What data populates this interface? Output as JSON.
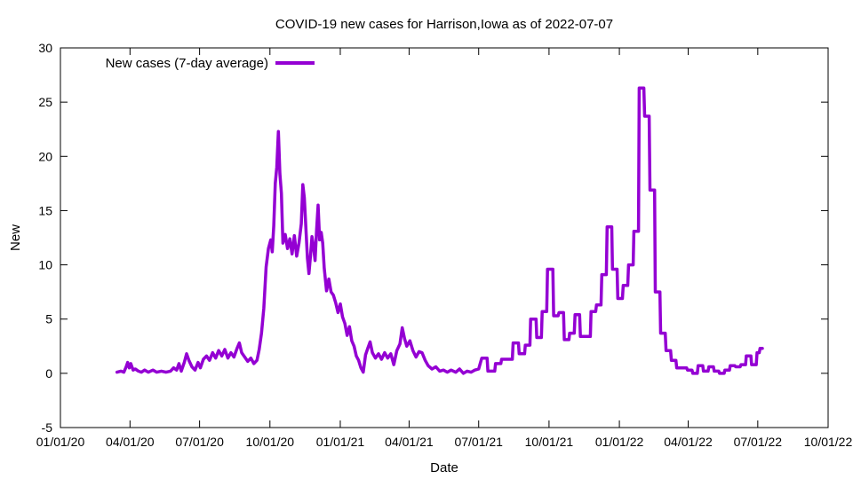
{
  "chart_data": {
    "type": "line",
    "title": "COVID-19 new cases for Harrison,Iowa as of 2022-07-07",
    "xlabel": "Date",
    "ylabel": "New",
    "ylim": [
      -5,
      30
    ],
    "yticks": [
      -5,
      0,
      5,
      10,
      15,
      20,
      25,
      30
    ],
    "xlim": [
      "2020-01-01",
      "2022-10-01"
    ],
    "xticks": [
      {
        "date": "2020-01-01",
        "label": "01/01/20"
      },
      {
        "date": "2020-04-01",
        "label": "04/01/20"
      },
      {
        "date": "2020-07-01",
        "label": "07/01/20"
      },
      {
        "date": "2020-10-01",
        "label": "10/01/20"
      },
      {
        "date": "2021-01-01",
        "label": "01/01/21"
      },
      {
        "date": "2021-04-01",
        "label": "04/01/21"
      },
      {
        "date": "2021-07-01",
        "label": "07/01/21"
      },
      {
        "date": "2021-10-01",
        "label": "10/01/21"
      },
      {
        "date": "2022-01-01",
        "label": "01/01/22"
      },
      {
        "date": "2022-04-01",
        "label": "04/01/22"
      },
      {
        "date": "2022-07-01",
        "label": "07/01/22"
      },
      {
        "date": "2022-10-01",
        "label": "10/01/22"
      }
    ],
    "grid": false,
    "legend_position": "top-left",
    "series": [
      {
        "name": "New cases (7-day average)",
        "color": "#9400d3",
        "points": [
          [
            "2020-03-15",
            0.1
          ],
          [
            "2020-03-20",
            0.2
          ],
          [
            "2020-03-24",
            0.1
          ],
          [
            "2020-03-27",
            0.6
          ],
          [
            "2020-03-29",
            1.0
          ],
          [
            "2020-03-31",
            0.5
          ],
          [
            "2020-04-02",
            0.9
          ],
          [
            "2020-04-05",
            0.3
          ],
          [
            "2020-04-08",
            0.4
          ],
          [
            "2020-04-12",
            0.2
          ],
          [
            "2020-04-16",
            0.1
          ],
          [
            "2020-04-20",
            0.3
          ],
          [
            "2020-04-25",
            0.1
          ],
          [
            "2020-05-01",
            0.3
          ],
          [
            "2020-05-06",
            0.1
          ],
          [
            "2020-05-12",
            0.2
          ],
          [
            "2020-05-18",
            0.1
          ],
          [
            "2020-05-24",
            0.2
          ],
          [
            "2020-05-28",
            0.5
          ],
          [
            "2020-06-01",
            0.3
          ],
          [
            "2020-06-04",
            0.9
          ],
          [
            "2020-06-07",
            0.2
          ],
          [
            "2020-06-11",
            1.0
          ],
          [
            "2020-06-14",
            1.8
          ],
          [
            "2020-06-17",
            1.2
          ],
          [
            "2020-06-21",
            0.6
          ],
          [
            "2020-06-25",
            0.3
          ],
          [
            "2020-06-29",
            1.0
          ],
          [
            "2020-07-02",
            0.5
          ],
          [
            "2020-07-06",
            1.3
          ],
          [
            "2020-07-10",
            1.6
          ],
          [
            "2020-07-14",
            1.2
          ],
          [
            "2020-07-18",
            1.9
          ],
          [
            "2020-07-22",
            1.4
          ],
          [
            "2020-07-26",
            2.1
          ],
          [
            "2020-07-30",
            1.6
          ],
          [
            "2020-08-03",
            2.2
          ],
          [
            "2020-08-07",
            1.4
          ],
          [
            "2020-08-11",
            1.9
          ],
          [
            "2020-08-15",
            1.5
          ],
          [
            "2020-08-19",
            2.3
          ],
          [
            "2020-08-22",
            2.8
          ],
          [
            "2020-08-25",
            1.9
          ],
          [
            "2020-08-29",
            1.5
          ],
          [
            "2020-09-02",
            1.1
          ],
          [
            "2020-09-06",
            1.4
          ],
          [
            "2020-09-10",
            0.9
          ],
          [
            "2020-09-14",
            1.2
          ],
          [
            "2020-09-17",
            2.2
          ],
          [
            "2020-09-20",
            3.7
          ],
          [
            "2020-09-23",
            6.0
          ],
          [
            "2020-09-26",
            9.8
          ],
          [
            "2020-09-29",
            11.5
          ],
          [
            "2020-10-02",
            12.3
          ],
          [
            "2020-10-04",
            11.2
          ],
          [
            "2020-10-06",
            13.6
          ],
          [
            "2020-10-08",
            17.5
          ],
          [
            "2020-10-10",
            19.0
          ],
          [
            "2020-10-12",
            22.3
          ],
          [
            "2020-10-14",
            18.4
          ],
          [
            "2020-10-16",
            16.6
          ],
          [
            "2020-10-18",
            12.0
          ],
          [
            "2020-10-21",
            12.8
          ],
          [
            "2020-10-24",
            11.5
          ],
          [
            "2020-10-27",
            12.4
          ],
          [
            "2020-10-30",
            11.0
          ],
          [
            "2020-11-02",
            12.7
          ],
          [
            "2020-11-05",
            10.8
          ],
          [
            "2020-11-08",
            12.0
          ],
          [
            "2020-11-11",
            13.8
          ],
          [
            "2020-11-13",
            17.4
          ],
          [
            "2020-11-15",
            16.2
          ],
          [
            "2020-11-17",
            13.5
          ],
          [
            "2020-11-19",
            10.6
          ],
          [
            "2020-11-21",
            9.2
          ],
          [
            "2020-11-23",
            10.8
          ],
          [
            "2020-11-25",
            12.6
          ],
          [
            "2020-11-27",
            11.7
          ],
          [
            "2020-11-29",
            10.4
          ],
          [
            "2020-12-01",
            13.2
          ],
          [
            "2020-12-03",
            15.5
          ],
          [
            "2020-12-05",
            12.3
          ],
          [
            "2020-12-07",
            13.0
          ],
          [
            "2020-12-09",
            12.0
          ],
          [
            "2020-12-11",
            9.7
          ],
          [
            "2020-12-14",
            7.6
          ],
          [
            "2020-12-17",
            8.7
          ],
          [
            "2020-12-20",
            7.5
          ],
          [
            "2020-12-23",
            7.2
          ],
          [
            "2020-12-26",
            6.5
          ],
          [
            "2020-12-29",
            5.6
          ],
          [
            "2021-01-01",
            6.4
          ],
          [
            "2021-01-04",
            5.2
          ],
          [
            "2021-01-07",
            4.6
          ],
          [
            "2021-01-10",
            3.5
          ],
          [
            "2021-01-13",
            4.3
          ],
          [
            "2021-01-16",
            3.0
          ],
          [
            "2021-01-19",
            2.5
          ],
          [
            "2021-01-22",
            1.6
          ],
          [
            "2021-01-25",
            1.2
          ],
          [
            "2021-01-28",
            0.5
          ],
          [
            "2021-01-31",
            0.1
          ],
          [
            "2021-02-03",
            1.7
          ],
          [
            "2021-02-06",
            2.3
          ],
          [
            "2021-02-09",
            2.9
          ],
          [
            "2021-02-12",
            1.9
          ],
          [
            "2021-02-16",
            1.4
          ],
          [
            "2021-02-20",
            1.8
          ],
          [
            "2021-02-24",
            1.3
          ],
          [
            "2021-02-28",
            1.9
          ],
          [
            "2021-03-04",
            1.4
          ],
          [
            "2021-03-08",
            1.8
          ],
          [
            "2021-03-12",
            0.8
          ],
          [
            "2021-03-16",
            2.1
          ],
          [
            "2021-03-20",
            2.7
          ],
          [
            "2021-03-23",
            4.2
          ],
          [
            "2021-03-26",
            3.2
          ],
          [
            "2021-03-29",
            2.5
          ],
          [
            "2021-04-02",
            3.0
          ],
          [
            "2021-04-06",
            2.1
          ],
          [
            "2021-04-10",
            1.5
          ],
          [
            "2021-04-14",
            2.0
          ],
          [
            "2021-04-18",
            1.9
          ],
          [
            "2021-04-22",
            1.2
          ],
          [
            "2021-04-26",
            0.7
          ],
          [
            "2021-05-01",
            0.4
          ],
          [
            "2021-05-06",
            0.6
          ],
          [
            "2021-05-11",
            0.2
          ],
          [
            "2021-05-16",
            0.3
          ],
          [
            "2021-05-21",
            0.1
          ],
          [
            "2021-05-26",
            0.3
          ],
          [
            "2021-06-01",
            0.1
          ],
          [
            "2021-06-06",
            0.4
          ],
          [
            "2021-06-11",
            0.0
          ],
          [
            "2021-06-16",
            0.2
          ],
          [
            "2021-06-21",
            0.1
          ],
          [
            "2021-06-26",
            0.3
          ],
          [
            "2021-07-01",
            0.4
          ],
          [
            "2021-07-05",
            1.4
          ],
          [
            "2021-07-12",
            1.4
          ],
          [
            "2021-07-13",
            0.2
          ],
          [
            "2021-07-22",
            0.2
          ],
          [
            "2021-07-23",
            0.9
          ],
          [
            "2021-07-30",
            0.9
          ],
          [
            "2021-07-31",
            1.3
          ],
          [
            "2021-08-14",
            1.3
          ],
          [
            "2021-08-15",
            2.8
          ],
          [
            "2021-08-22",
            2.8
          ],
          [
            "2021-08-23",
            1.8
          ],
          [
            "2021-08-30",
            1.8
          ],
          [
            "2021-08-31",
            2.6
          ],
          [
            "2021-09-06",
            2.6
          ],
          [
            "2021-09-07",
            5.0
          ],
          [
            "2021-09-14",
            5.0
          ],
          [
            "2021-09-15",
            3.3
          ],
          [
            "2021-09-21",
            3.3
          ],
          [
            "2021-09-22",
            5.7
          ],
          [
            "2021-09-28",
            5.7
          ],
          [
            "2021-09-29",
            9.6
          ],
          [
            "2021-10-06",
            9.6
          ],
          [
            "2021-10-07",
            5.3
          ],
          [
            "2021-10-13",
            5.3
          ],
          [
            "2021-10-14",
            5.6
          ],
          [
            "2021-10-20",
            5.6
          ],
          [
            "2021-10-21",
            3.1
          ],
          [
            "2021-10-27",
            3.1
          ],
          [
            "2021-10-28",
            3.7
          ],
          [
            "2021-11-03",
            3.7
          ],
          [
            "2021-11-04",
            5.4
          ],
          [
            "2021-11-10",
            5.4
          ],
          [
            "2021-11-11",
            3.4
          ],
          [
            "2021-11-24",
            3.4
          ],
          [
            "2021-11-25",
            5.7
          ],
          [
            "2021-12-01",
            5.7
          ],
          [
            "2021-12-02",
            6.3
          ],
          [
            "2021-12-08",
            6.3
          ],
          [
            "2021-12-09",
            9.1
          ],
          [
            "2021-12-15",
            9.1
          ],
          [
            "2021-12-16",
            13.5
          ],
          [
            "2021-12-22",
            13.5
          ],
          [
            "2021-12-23",
            9.6
          ],
          [
            "2021-12-29",
            9.6
          ],
          [
            "2021-12-30",
            6.9
          ],
          [
            "2022-01-05",
            6.9
          ],
          [
            "2022-01-06",
            8.1
          ],
          [
            "2022-01-12",
            8.1
          ],
          [
            "2022-01-13",
            10.0
          ],
          [
            "2022-01-19",
            10.0
          ],
          [
            "2022-01-20",
            13.1
          ],
          [
            "2022-01-26",
            13.1
          ],
          [
            "2022-01-27",
            26.3
          ],
          [
            "2022-02-02",
            26.3
          ],
          [
            "2022-02-03",
            23.7
          ],
          [
            "2022-02-09",
            23.7
          ],
          [
            "2022-02-10",
            16.9
          ],
          [
            "2022-02-16",
            16.9
          ],
          [
            "2022-02-17",
            7.5
          ],
          [
            "2022-02-23",
            7.5
          ],
          [
            "2022-02-24",
            3.7
          ],
          [
            "2022-03-02",
            3.7
          ],
          [
            "2022-03-03",
            2.1
          ],
          [
            "2022-03-09",
            2.1
          ],
          [
            "2022-03-10",
            1.2
          ],
          [
            "2022-03-16",
            1.2
          ],
          [
            "2022-03-17",
            0.5
          ],
          [
            "2022-03-30",
            0.5
          ],
          [
            "2022-03-31",
            0.3
          ],
          [
            "2022-04-06",
            0.3
          ],
          [
            "2022-04-07",
            0.0
          ],
          [
            "2022-04-13",
            0.0
          ],
          [
            "2022-04-14",
            0.7
          ],
          [
            "2022-04-20",
            0.7
          ],
          [
            "2022-04-21",
            0.2
          ],
          [
            "2022-04-27",
            0.2
          ],
          [
            "2022-04-28",
            0.6
          ],
          [
            "2022-05-04",
            0.6
          ],
          [
            "2022-05-05",
            0.2
          ],
          [
            "2022-05-11",
            0.2
          ],
          [
            "2022-05-12",
            0.0
          ],
          [
            "2022-05-18",
            0.0
          ],
          [
            "2022-05-19",
            0.3
          ],
          [
            "2022-05-25",
            0.3
          ],
          [
            "2022-05-26",
            0.7
          ],
          [
            "2022-06-01",
            0.7
          ],
          [
            "2022-06-02",
            0.6
          ],
          [
            "2022-06-08",
            0.6
          ],
          [
            "2022-06-09",
            0.8
          ],
          [
            "2022-06-15",
            0.8
          ],
          [
            "2022-06-16",
            1.6
          ],
          [
            "2022-06-22",
            1.6
          ],
          [
            "2022-06-23",
            0.8
          ],
          [
            "2022-06-29",
            0.8
          ],
          [
            "2022-06-30",
            1.9
          ],
          [
            "2022-07-03",
            1.9
          ],
          [
            "2022-07-04",
            2.3
          ],
          [
            "2022-07-07",
            2.3
          ]
        ]
      }
    ]
  }
}
